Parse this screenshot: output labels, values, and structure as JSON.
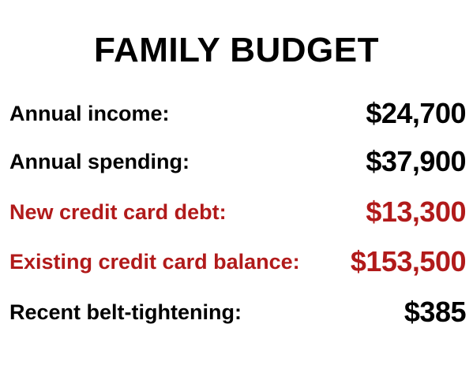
{
  "title": "FAMILY BUDGET",
  "colors": {
    "normal": "#000000",
    "highlight": "#b11a1a"
  },
  "rows": [
    {
      "label": "Annual income:",
      "value": "$24,700",
      "highlight": false
    },
    {
      "label": "Annual spending:",
      "value": "$37,900",
      "highlight": false
    },
    {
      "label": "New credit card debt:",
      "value": "$13,300",
      "highlight": true
    },
    {
      "label": "Existing credit card balance:",
      "value": "$153,500",
      "highlight": true
    },
    {
      "label": "Recent belt-tightening:",
      "value": "$385",
      "highlight": false
    }
  ]
}
